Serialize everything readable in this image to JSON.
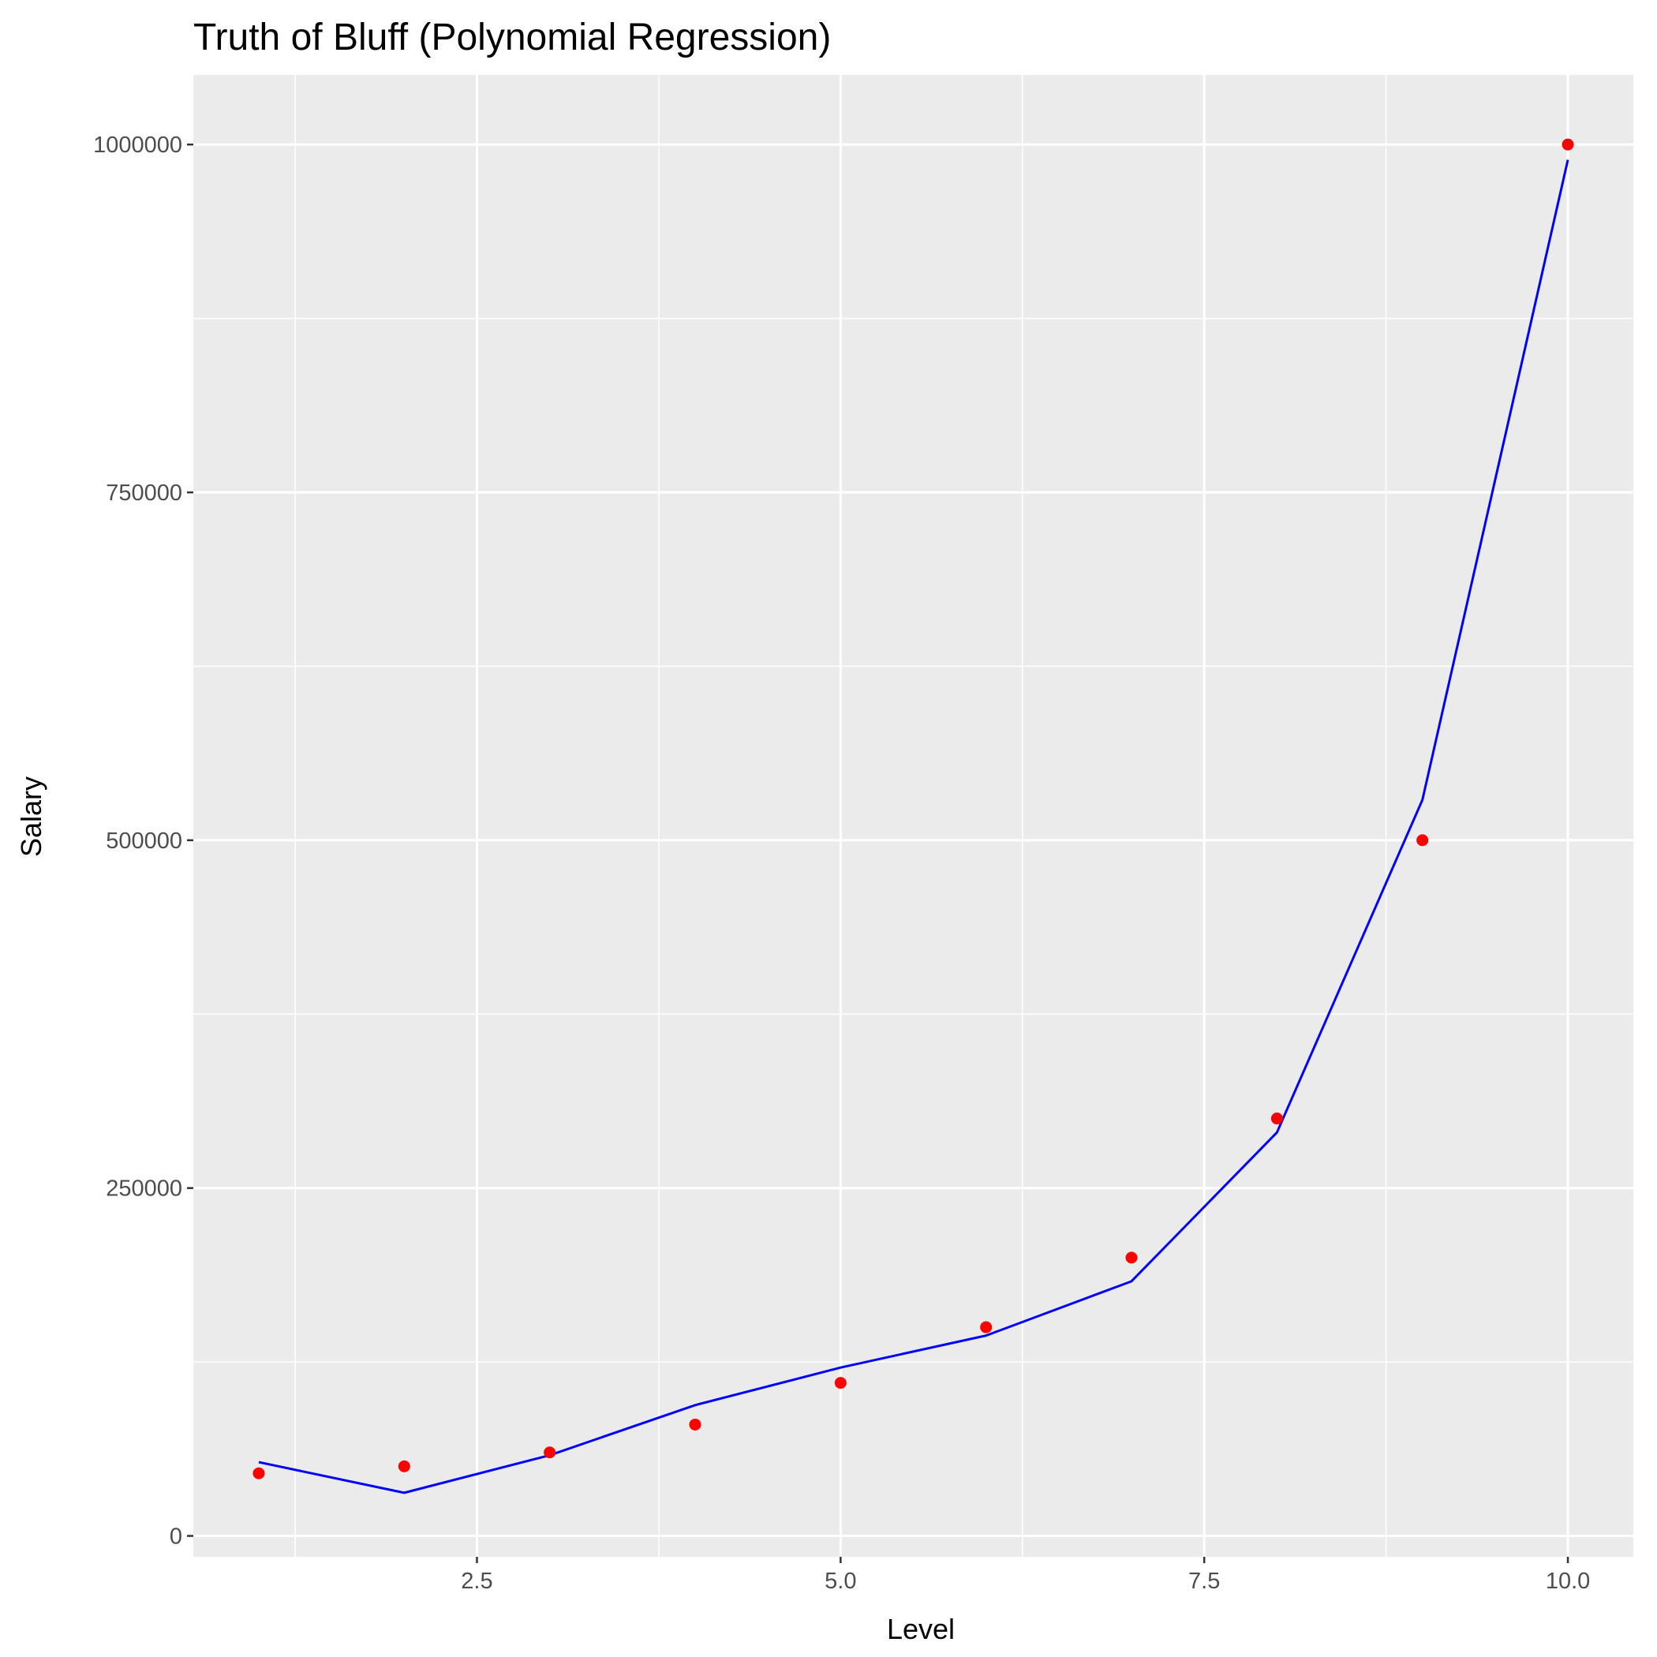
{
  "chart_data": {
    "type": "scatter",
    "title": "Truth of Bluff (Polynomial Regression)",
    "xlabel": "Level",
    "ylabel": "Salary",
    "xlim": [
      0.55,
      10.45
    ],
    "ylim": [
      -15000,
      1050000
    ],
    "x_ticks": [
      2.5,
      5.0,
      7.5,
      10.0
    ],
    "x_tick_labels": [
      "2.5",
      "5.0",
      "7.5",
      "10.0"
    ],
    "y_ticks": [
      0,
      250000,
      500000,
      750000,
      1000000
    ],
    "y_tick_labels": [
      "0",
      "250000",
      "500000",
      "750000",
      "1000000"
    ],
    "grid": true,
    "background": "#ebebeb",
    "series": [
      {
        "kind": "points",
        "color": "#ff0000",
        "x": [
          1,
          2,
          3,
          4,
          5,
          6,
          7,
          8,
          9,
          10
        ],
        "y": [
          45000,
          50000,
          60000,
          80000,
          110000,
          150000,
          200000,
          300000,
          500000,
          1000000
        ]
      },
      {
        "kind": "line",
        "color": "#0000ff",
        "x": [
          1,
          2,
          3,
          4,
          5,
          6,
          7,
          8,
          9,
          10
        ],
        "y": [
          53000,
          31000,
          58000,
          94000,
          121000,
          144000,
          183000,
          290000,
          529000,
          989000
        ]
      }
    ]
  }
}
